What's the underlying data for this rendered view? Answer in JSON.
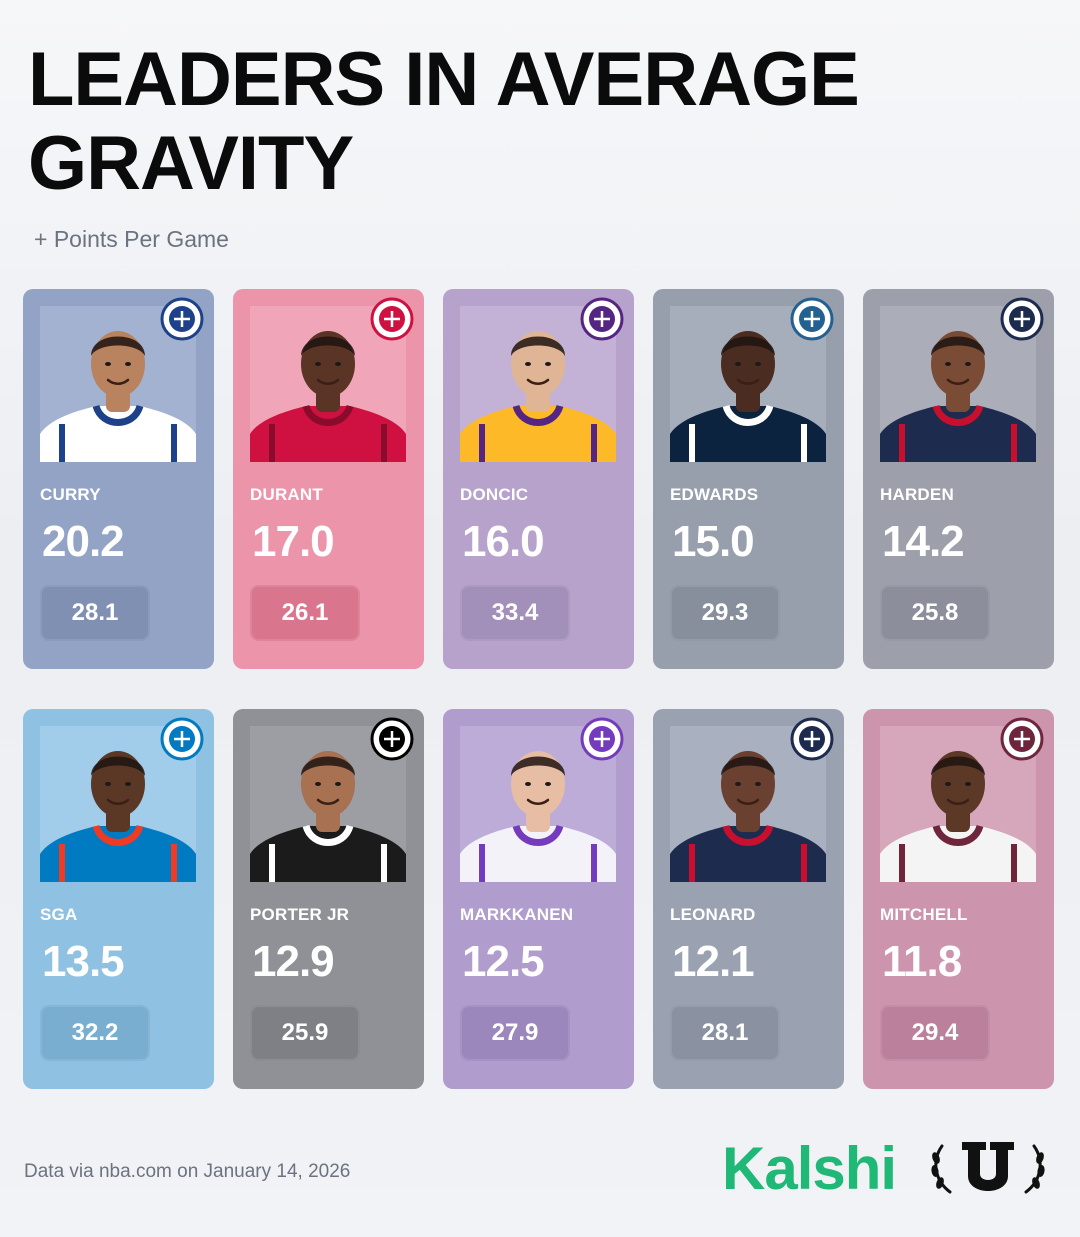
{
  "header": {
    "title": "LEADERS IN AVERAGE GRAVITY",
    "subtitle": "+ Points Per Game"
  },
  "players": [
    {
      "name": "CURRY",
      "gravity": "20.2",
      "ppg": "28.1",
      "card_color": "#93a3c6",
      "pill_color": "#8090b3",
      "jersey_color": "#ffffff",
      "trim_color": "#1d428a",
      "skin": "#b9835f",
      "bg": "#a3b2d1",
      "logo_color": "#1d428a",
      "logo_icon": "warriors-logo-icon"
    },
    {
      "name": "DURANT",
      "gravity": "17.0",
      "ppg": "26.1",
      "card_color": "#ec94aa",
      "pill_color": "#d9768e",
      "jersey_color": "#ce1141",
      "trim_color": "#8a0b2c",
      "skin": "#5a3425",
      "bg": "#f0a6b8",
      "logo_color": "#ce1141",
      "logo_icon": "rockets-logo-icon"
    },
    {
      "name": "DONCIC",
      "gravity": "16.0",
      "ppg": "33.4",
      "card_color": "#b6a2cb",
      "pill_color": "#a28fba",
      "jersey_color": "#fdb927",
      "trim_color": "#552583",
      "skin": "#e0b596",
      "bg": "#c3b1d6",
      "logo_color": "#552583",
      "logo_icon": "lakers-logo-icon"
    },
    {
      "name": "EDWARDS",
      "gravity": "15.0",
      "ppg": "29.3",
      "card_color": "#979fac",
      "pill_color": "#878f9c",
      "jersey_color": "#0c2340",
      "trim_color": "#ffffff",
      "skin": "#4a2c20",
      "bg": "#a7aebb",
      "logo_color": "#236192",
      "logo_icon": "timberwolves-logo-icon"
    },
    {
      "name": "HARDEN",
      "gravity": "14.2",
      "ppg": "25.8",
      "card_color": "#9da0ab",
      "pill_color": "#8c8f9b",
      "jersey_color": "#1d2b4f",
      "trim_color": "#c8102e",
      "skin": "#7a4c36",
      "bg": "#abaeb9",
      "logo_color": "#1d2b4f",
      "logo_icon": "clippers-logo-icon"
    },
    {
      "name": "SGA",
      "gravity": "13.5",
      "ppg": "32.2",
      "card_color": "#8fc1e2",
      "pill_color": "#7aaed1",
      "jersey_color": "#007ac1",
      "trim_color": "#ef3b24",
      "skin": "#5b3826",
      "bg": "#a1cdea",
      "logo_color": "#007ac1",
      "logo_icon": "thunder-logo-icon"
    },
    {
      "name": "PORTER JR",
      "gravity": "12.9",
      "ppg": "25.9",
      "card_color": "#8f9196",
      "pill_color": "#7e8085",
      "jersey_color": "#1b1b1b",
      "trim_color": "#ffffff",
      "skin": "#a77152",
      "bg": "#9c9ea3",
      "logo_color": "#000000",
      "logo_icon": "nets-logo-icon"
    },
    {
      "name": "MARKKANEN",
      "gravity": "12.5",
      "ppg": "27.9",
      "card_color": "#b09ccd",
      "pill_color": "#9c87bd",
      "jersey_color": "#f3f2f8",
      "trim_color": "#753bbd",
      "skin": "#e7bda3",
      "bg": "#bdacd8",
      "logo_color": "#753bbd",
      "logo_icon": "jazz-logo-icon"
    },
    {
      "name": "LEONARD",
      "gravity": "12.1",
      "ppg": "28.1",
      "card_color": "#9aa1b1",
      "pill_color": "#8a91a1",
      "jersey_color": "#1d2b4f",
      "trim_color": "#c8102e",
      "skin": "#6a4030",
      "bg": "#a9b0bf",
      "logo_color": "#1d2b4f",
      "logo_icon": "clippers-logo-icon"
    },
    {
      "name": "MITCHELL",
      "gravity": "11.8",
      "ppg": "29.4",
      "card_color": "#cd94ad",
      "pill_color": "#bb809b",
      "jersey_color": "#f4f4f4",
      "trim_color": "#6f263d",
      "skin": "#5c3927",
      "bg": "#d6a6bb",
      "logo_color": "#6f263d",
      "logo_icon": "cavaliers-logo-icon"
    }
  ],
  "footer": {
    "source": "Data via nba.com on January 14, 2026",
    "brand": "Kalshi",
    "brand_color": "#1fb877",
    "partner_icon": "laurel-u-logo-icon"
  }
}
